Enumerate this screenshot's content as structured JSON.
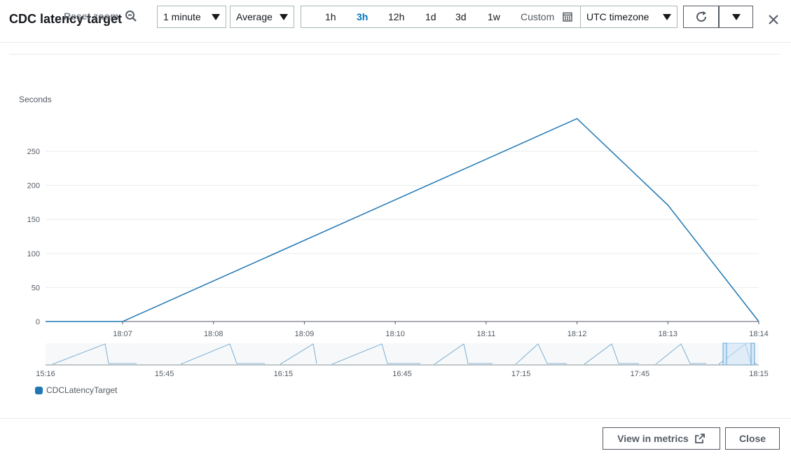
{
  "header": {
    "title": "CDC latency target",
    "reset_zoom": "Reset zoom",
    "period": "1 minute",
    "statistic": "Average",
    "ranges": [
      "1h",
      "3h",
      "12h",
      "1d",
      "3d",
      "1w"
    ],
    "active_range": "3h",
    "custom_label": "Custom",
    "timezone": "UTC timezone"
  },
  "chart_data": {
    "type": "line",
    "ylabel": "Seconds",
    "y_ticks": [
      0,
      50,
      100,
      150,
      200,
      250
    ],
    "ylim": [
      0,
      300
    ],
    "x_ticks": [
      "18:07",
      "18:08",
      "18:09",
      "18:10",
      "18:11",
      "18:12",
      "18:13",
      "18:14"
    ],
    "series": [
      {
        "name": "CDCLatencyTarget",
        "color": "#1f77b4",
        "x": [
          "18:06:09",
          "18:07",
          "18:12",
          "18:13",
          "18:14"
        ],
        "values": [
          0,
          0,
          298,
          171,
          0
        ]
      }
    ],
    "overview_x_ticks": [
      "15:16",
      "15:45",
      "16:15",
      "16:45",
      "17:15",
      "17:45",
      "18:15"
    ],
    "grid": true
  },
  "legend": {
    "label": "CDCLatencyTarget"
  },
  "footer": {
    "view_in_metrics": "View in metrics",
    "close": "Close"
  }
}
